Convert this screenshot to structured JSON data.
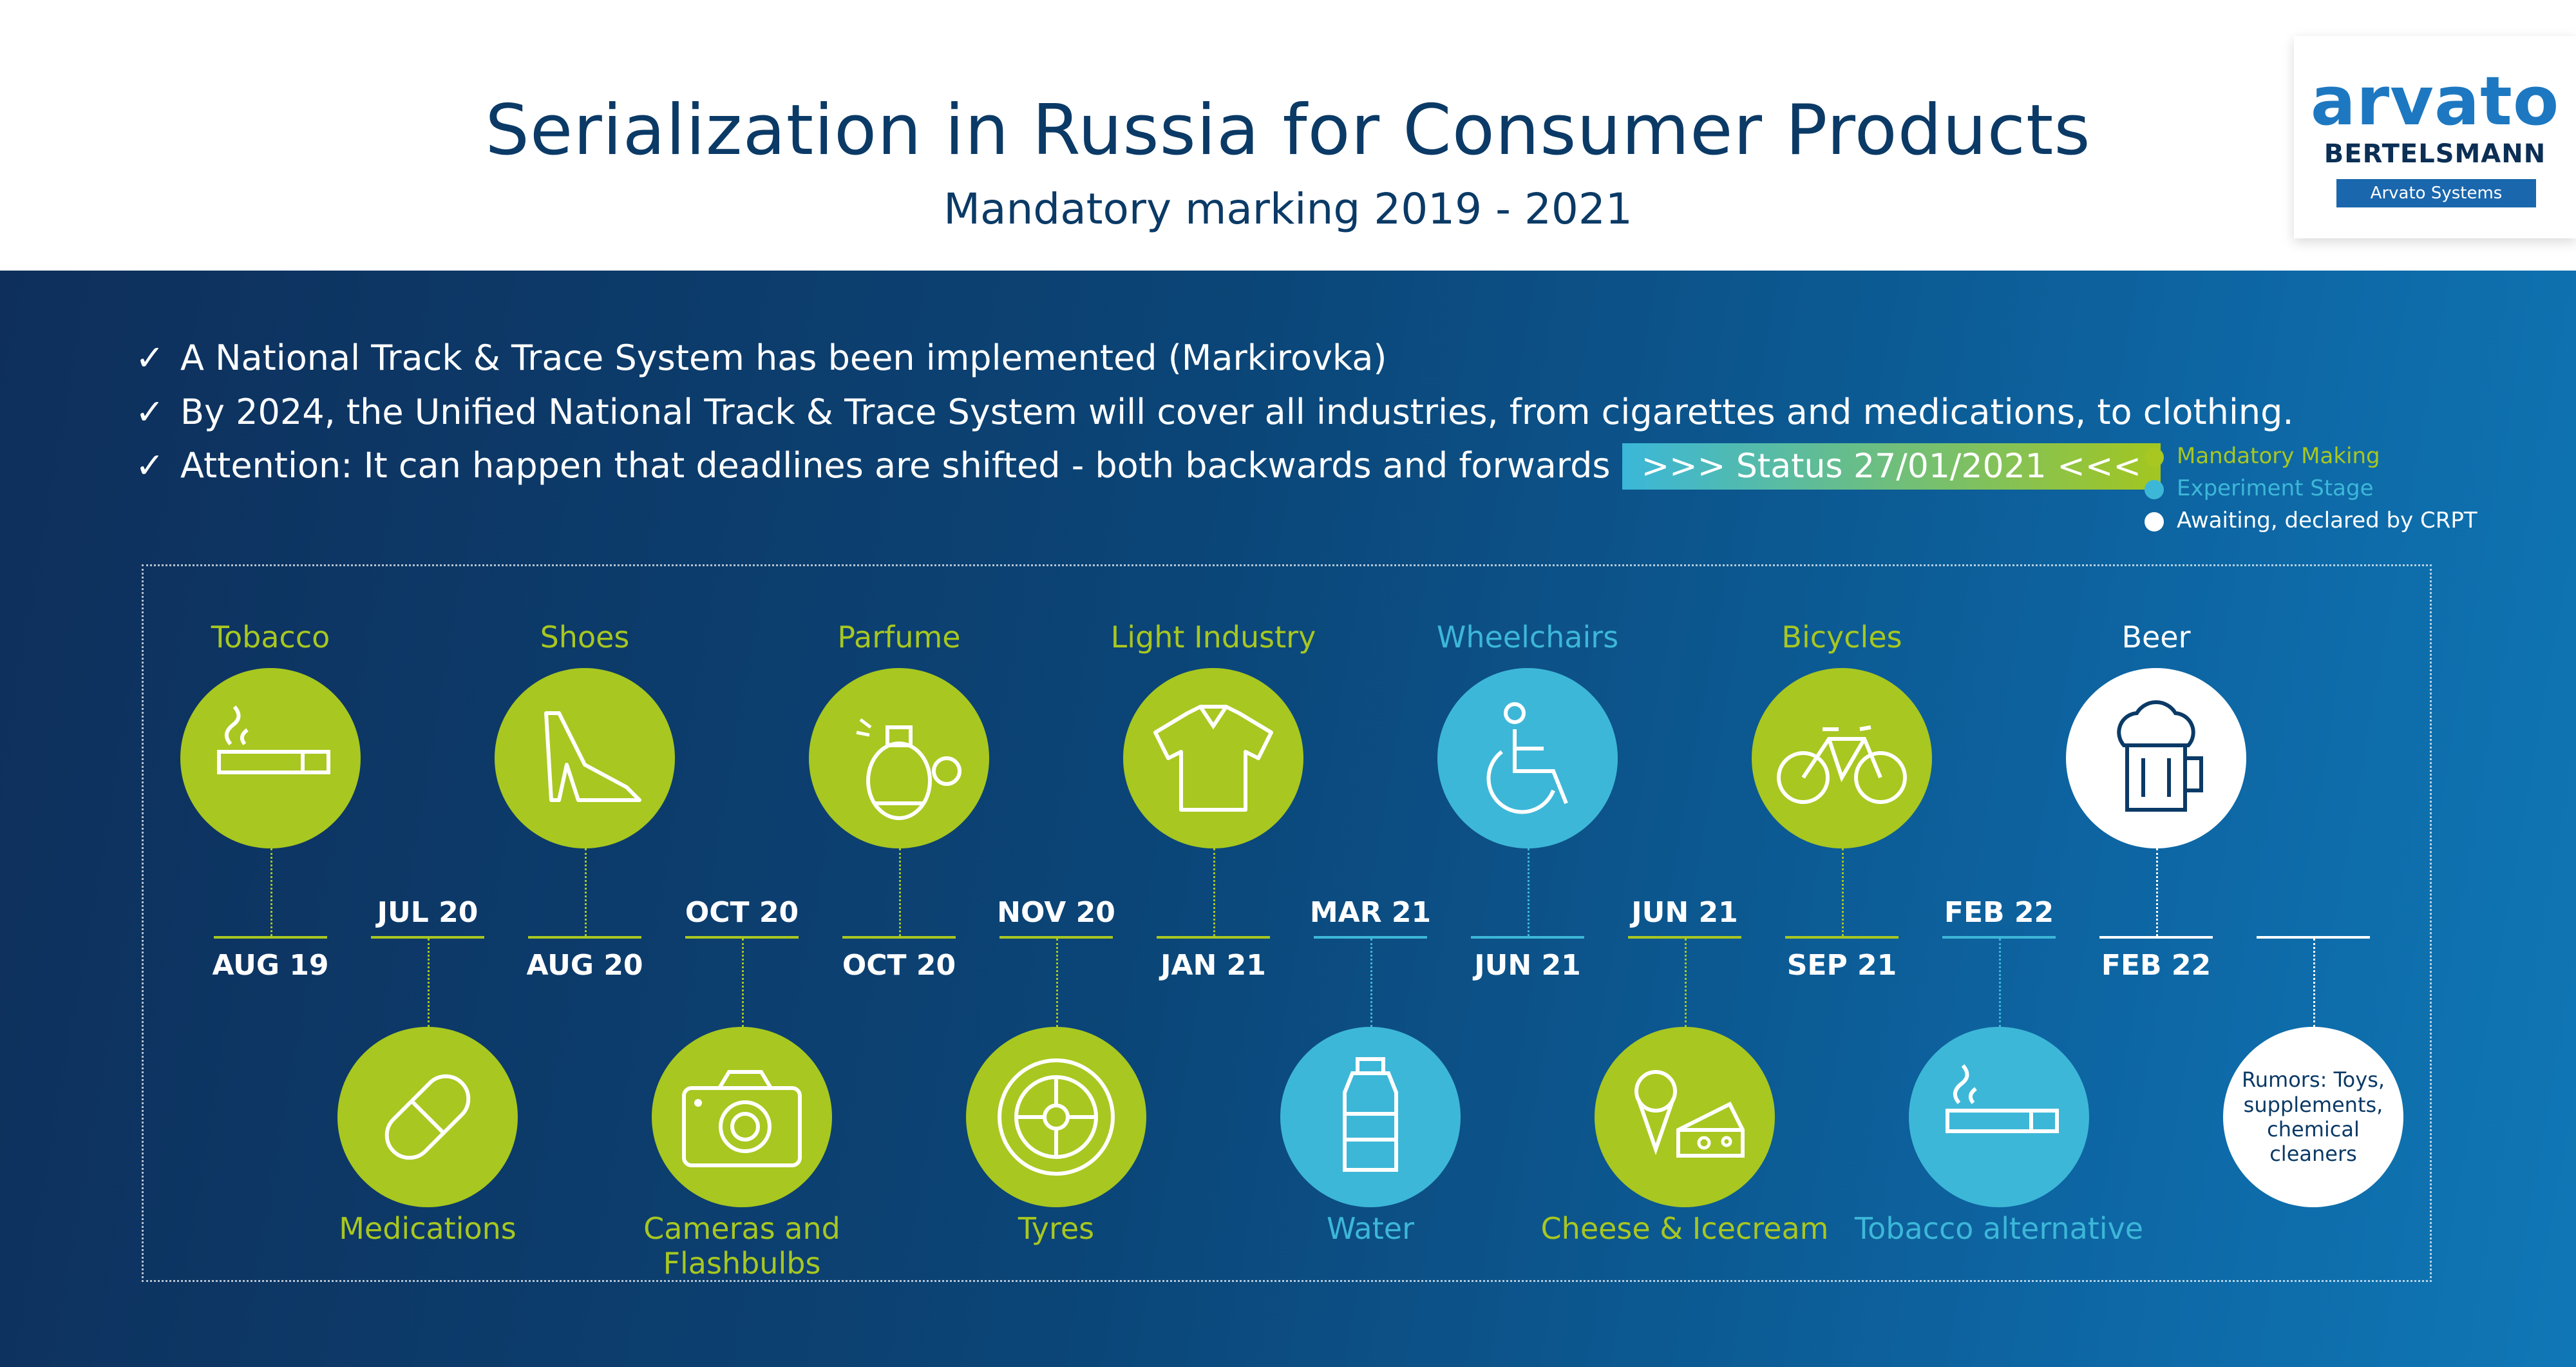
{
  "header": {
    "title": "Serialization in Russia for Consumer Products",
    "subtitle": "Mandatory marking 2019 - 2021"
  },
  "logo": {
    "brand": "arvato",
    "parent": "BERTELSMANN",
    "division": "Arvato Systems"
  },
  "bullets": [
    "A National Track & Trace System has been implemented (Markirovka)",
    "By 2024, the Unified National Track & Trace System will cover all industries, from cigarettes and medications, to clothing.",
    "Attention: It can happen that deadlines are shifted - both backwards and forwards"
  ],
  "status_badge": ">>> Status 27/01/2021 <<<",
  "legend": [
    {
      "label": "Mandatory Making",
      "color": "#a8c720"
    },
    {
      "label": "Experiment Stage",
      "color": "#3db7d8"
    },
    {
      "label": "Awaiting, declared by CRPT",
      "color": "#ffffff"
    }
  ],
  "timeline": {
    "top": [
      {
        "label": "Tobacco",
        "date": "AUG 19",
        "status": "mandatory",
        "icon": "cigarette-icon"
      },
      {
        "label": "Shoes",
        "date": "AUG 20",
        "status": "mandatory",
        "icon": "high-heel-icon"
      },
      {
        "label": "Parfume",
        "date": "OCT 20",
        "status": "mandatory",
        "icon": "perfume-icon"
      },
      {
        "label": "Light Industry",
        "date": "JAN 21",
        "status": "mandatory",
        "icon": "shirt-icon"
      },
      {
        "label": "Wheelchairs",
        "date": "JUN 21",
        "status": "experiment",
        "icon": "wheelchair-icon"
      },
      {
        "label": "Bicycles",
        "date": "SEP 21",
        "status": "mandatory",
        "icon": "bicycle-icon"
      },
      {
        "label": "Beer",
        "date": "FEB 22",
        "status": "awaiting",
        "icon": "beer-icon"
      }
    ],
    "bottom": [
      {
        "label": "Medications",
        "date": "JUL 20",
        "status": "mandatory",
        "icon": "pill-icon"
      },
      {
        "label": "Cameras and Flashbulbs",
        "date": "OCT 20",
        "status": "mandatory",
        "icon": "camera-icon"
      },
      {
        "label": "Tyres",
        "date": "NOV 20",
        "status": "mandatory",
        "icon": "tyre-icon"
      },
      {
        "label": "Water",
        "date": "MAR 21",
        "status": "experiment",
        "icon": "water-bottle-icon"
      },
      {
        "label": "Cheese & Icecream",
        "date": "JUN 21",
        "status": "mandatory",
        "icon": "cheese-icecream-icon"
      },
      {
        "label": "Tobacco alternative",
        "date": "FEB 22",
        "status": "experiment",
        "icon": "cigarette-icon"
      },
      {
        "label": "",
        "date": "",
        "status": "awaiting",
        "icon": "",
        "text": "Rumors: Toys, supplements, chemical cleaners"
      }
    ]
  }
}
